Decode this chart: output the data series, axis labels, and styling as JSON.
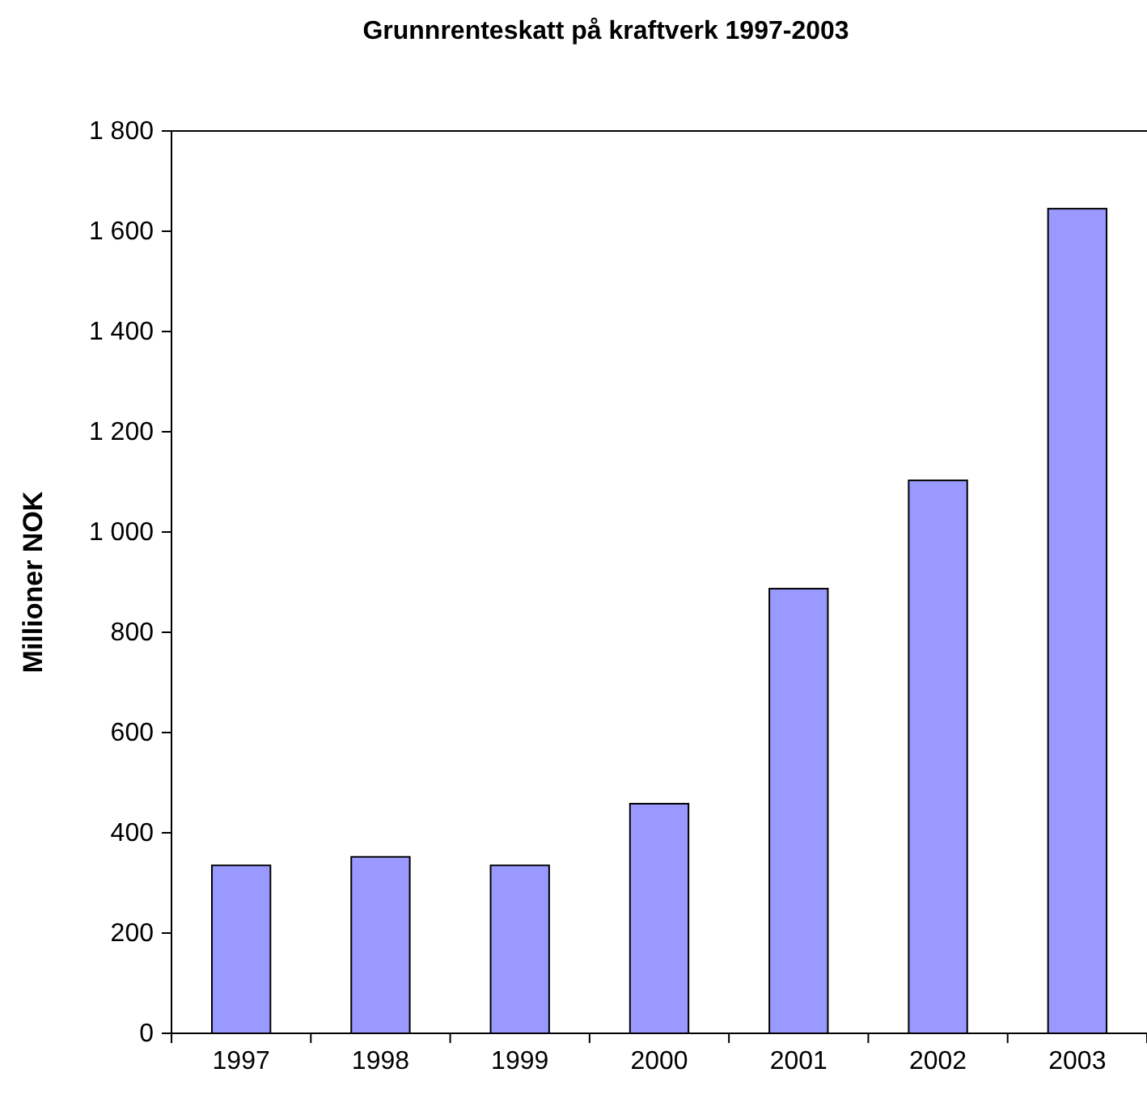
{
  "chart_data": {
    "type": "bar",
    "title": "Grunnrenteskatt på kraftverk 1997-2003",
    "ylabel": "Millioner NOK",
    "categories": [
      "1997",
      "1998",
      "1999",
      "2000",
      "2001",
      "2002",
      "2003"
    ],
    "values": [
      335,
      352,
      335,
      458,
      887,
      1103,
      1645
    ],
    "color": "#9999ff",
    "ylim": [
      0,
      1800
    ],
    "yticks": [
      0,
      200,
      400,
      600,
      800,
      {
        "value": 1000,
        "label": "1 000"
      },
      {
        "value": 1200,
        "label": "1 200"
      },
      {
        "value": 1400,
        "label": "1 400"
      },
      {
        "value": 1600,
        "label": "1 600"
      },
      {
        "value": 1800,
        "label": "1 800"
      }
    ],
    "grid": false
  }
}
